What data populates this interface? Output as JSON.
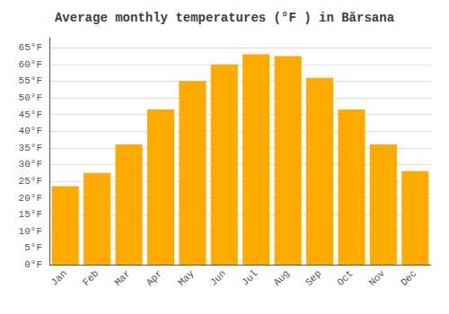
{
  "chart_data": {
    "type": "bar",
    "title": "Average monthly temperatures (°F ) in Bărsana",
    "categories": [
      "Jan",
      "Feb",
      "Mar",
      "Apr",
      "May",
      "Jun",
      "Jul",
      "Aug",
      "Sep",
      "Oct",
      "Nov",
      "Dec"
    ],
    "values": [
      23.5,
      27.5,
      36,
      46.5,
      55,
      60,
      63,
      62.5,
      56,
      46.5,
      36,
      28
    ],
    "color": "#FFAA00",
    "ylim": [
      0,
      68
    ],
    "yticks": [
      {
        "value": 0,
        "label": "0°F"
      },
      {
        "value": 5,
        "label": "5°F"
      },
      {
        "value": 10,
        "label": "10°F"
      },
      {
        "value": 15,
        "label": "15°F"
      },
      {
        "value": 20,
        "label": "20°F"
      },
      {
        "value": 25,
        "label": "25°F"
      },
      {
        "value": 30,
        "label": "30°F"
      },
      {
        "value": 35,
        "label": "35°F"
      },
      {
        "value": 40,
        "label": "40°F"
      },
      {
        "value": 45,
        "label": "45°F"
      },
      {
        "value": 50,
        "label": "50°F"
      },
      {
        "value": 55,
        "label": "55°F"
      },
      {
        "value": 60,
        "label": "60°F"
      },
      {
        "value": 65,
        "label": "65°F"
      }
    ],
    "grid": true
  }
}
